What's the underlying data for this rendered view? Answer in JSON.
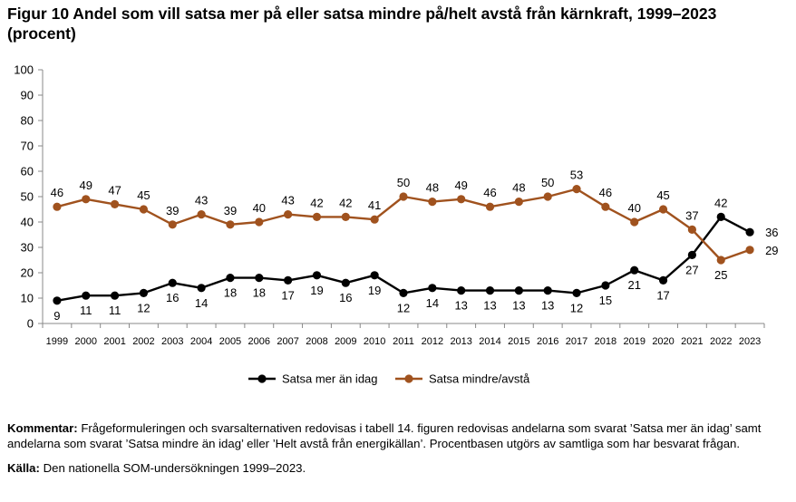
{
  "title": "Figur 10 Andel som vill satsa mer på eller satsa mindre på/helt avstå från kärnkraft, 1999–2023 (procent)",
  "chart_data": {
    "type": "line",
    "title": "Figur 10 Andel som vill satsa mer på eller satsa mindre på/helt avstå från kärnkraft, 1999–2023 (procent)",
    "xlabel": "",
    "ylabel": "",
    "ylim": [
      0,
      100
    ],
    "yticks": [
      0,
      10,
      20,
      30,
      40,
      50,
      60,
      70,
      80,
      90,
      100
    ],
    "grid": false,
    "legend": "bottom",
    "categories": [
      "1999",
      "2000",
      "2001",
      "2002",
      "2003",
      "2004",
      "2005",
      "2006",
      "2007",
      "2008",
      "2009",
      "2010",
      "2011",
      "2012",
      "2013",
      "2014",
      "2015",
      "2016",
      "2017",
      "2018",
      "2019",
      "2020",
      "2021",
      "2022",
      "2023"
    ],
    "series": [
      {
        "name": "Satsa mer än idag",
        "color": "#000000",
        "values": [
          9,
          11,
          11,
          12,
          16,
          14,
          18,
          18,
          17,
          19,
          16,
          19,
          12,
          14,
          13,
          13,
          13,
          13,
          12,
          15,
          21,
          17,
          27,
          42,
          36
        ]
      },
      {
        "name": "Satsa mindre/avstå",
        "color": "#A0521E",
        "values": [
          46,
          49,
          47,
          45,
          39,
          43,
          39,
          40,
          43,
          42,
          42,
          41,
          50,
          48,
          49,
          46,
          48,
          50,
          53,
          46,
          40,
          45,
          37,
          25,
          29
        ]
      }
    ]
  },
  "notes": {
    "comment_label": "Kommentar:",
    "comment_text": " Frågeformuleringen och svarsalternativen redovisas i tabell 14. figuren redovisas andelarna som svarat ’Satsa mer än idag’ samt andelarna som svarat ’Satsa mindre än idag’ eller ’Helt avstå från energikällan’. Procentbasen utgörs av samtliga som har besvarat frågan.",
    "source_label": "Källa:",
    "source_text": " Den nationella SOM-undersökningen 1999–2023."
  }
}
